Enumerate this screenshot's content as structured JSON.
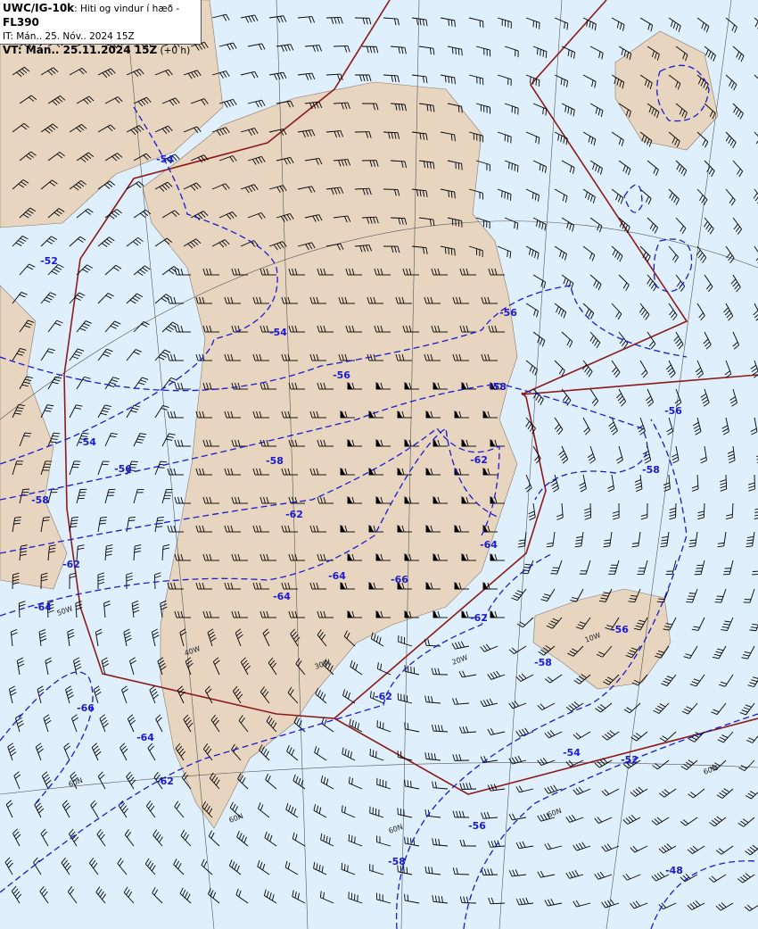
{
  "header": {
    "product": "UWC/IG-10k",
    "description": ": Hiti og vindur í hæð - ",
    "level": "FL390",
    "issue_time": "IT: Mán.. 25. Nóv.. 2024 15Z",
    "valid_label": "VT: Mán.. 25.11.2024 15Z",
    "valid_offset": " (+0 h)"
  },
  "colors": {
    "ocean": "#dfeffb",
    "land": "#e8d5c0",
    "isotherm": "#1a1ad0",
    "fir_boundary": "#8b1a1a",
    "graticule": "#555555",
    "wind_barb": "#000000"
  },
  "isotherm_labels": [
    "-54",
    "-52",
    "-54",
    "-56",
    "-56",
    "-58",
    "-56",
    "-54",
    "-56",
    "-58",
    "-58",
    "-62",
    "-62",
    "-58",
    "-64",
    "-62",
    "-64",
    "-64",
    "-66",
    "-64",
    "-62",
    "-56",
    "-58",
    "-62",
    "-66",
    "-64",
    "-54",
    "-52",
    "-62",
    "-56",
    "-58",
    "-48"
  ],
  "graticule_labels": [
    "60N",
    "60N",
    "60N",
    "60N",
    "60N",
    "50W",
    "40W",
    "30W",
    "20W",
    "10W"
  ]
}
